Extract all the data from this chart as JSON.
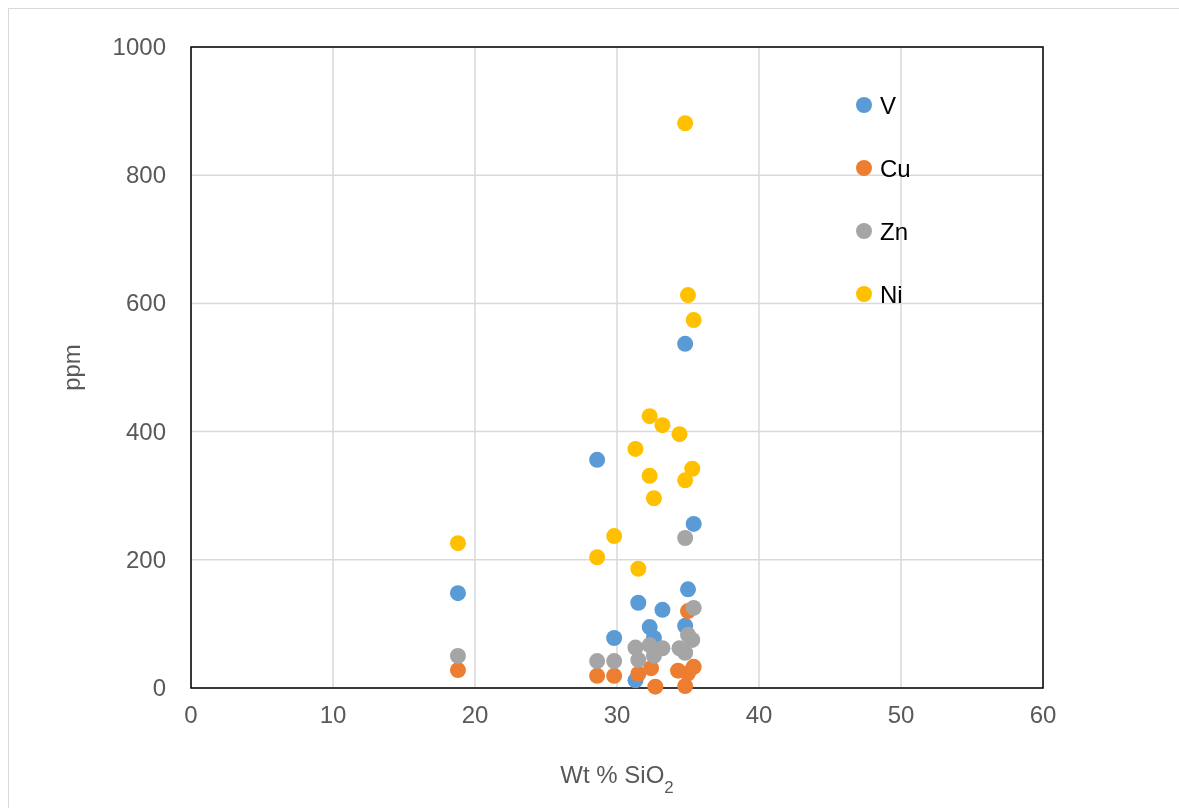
{
  "chart_data": {
    "type": "scatter",
    "xlabel": "Wt % SiO$_{2}$",
    "ylabel": "ppm",
    "xlim": [
      0,
      60
    ],
    "ylim": [
      0,
      1000
    ],
    "xticks": [
      0,
      10,
      20,
      30,
      40,
      50,
      60
    ],
    "yticks": [
      0,
      200,
      400,
      600,
      800,
      1000
    ],
    "grid": true,
    "legend": "top right",
    "marker": "circle",
    "series": [
      {
        "name": "V",
        "color": "#5b9bd5",
        "x": [
          18.8,
          28.6,
          29.8,
          31.3,
          31.5,
          32.3,
          32.6,
          33.2,
          34.8,
          34.8,
          35.0,
          35.4
        ],
        "values": [
          148,
          356,
          78,
          12,
          133,
          95,
          78,
          122,
          537,
          97,
          154,
          256
        ]
      },
      {
        "name": "Cu",
        "color": "#ed7d31",
        "x": [
          18.8,
          28.6,
          29.8,
          31.5,
          32.4,
          32.7,
          34.3,
          34.8,
          35.0,
          35.0,
          35.4
        ],
        "values": [
          28,
          19,
          19,
          22,
          31,
          2,
          27,
          3,
          120,
          23,
          33
        ]
      },
      {
        "name": "Zn",
        "color": "#a5a5a5",
        "x": [
          18.8,
          28.6,
          29.8,
          31.3,
          31.5,
          32.3,
          32.6,
          33.2,
          34.4,
          34.8,
          34.8,
          35.0,
          35.4,
          35.3
        ],
        "values": [
          50,
          42,
          42,
          63,
          44,
          67,
          50,
          62,
          62,
          234,
          55,
          83,
          125,
          75
        ]
      },
      {
        "name": "Ni",
        "color": "#ffc000",
        "x": [
          18.8,
          28.6,
          29.8,
          31.3,
          31.5,
          32.3,
          32.3,
          32.6,
          33.2,
          34.4,
          34.8,
          34.8,
          35.0,
          35.4,
          35.3
        ],
        "values": [
          226,
          204,
          237,
          373,
          186,
          424,
          331,
          296,
          410,
          396,
          881,
          324,
          613,
          574,
          342
        ]
      }
    ]
  }
}
